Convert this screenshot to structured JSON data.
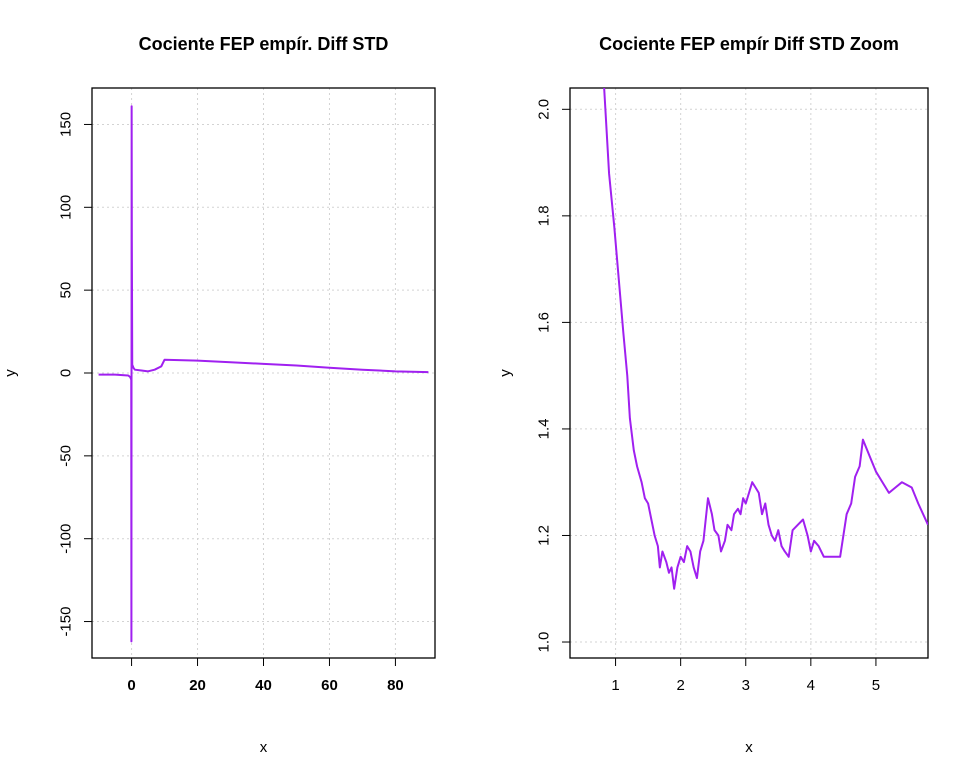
{
  "colors": {
    "line": "#a020f0",
    "grid": "#d3d3d3",
    "frame": "#000000"
  },
  "chart_data": [
    {
      "type": "line",
      "title": "Cociente FEP empír. Diff STD",
      "xlabel": "x",
      "ylabel": "y",
      "xlim": [
        -12,
        92
      ],
      "ylim": [
        -172,
        172
      ],
      "grid": true,
      "x_ticks": [
        0,
        20,
        40,
        60,
        80
      ],
      "y_ticks": [
        -150,
        -100,
        -50,
        0,
        50,
        100,
        150
      ],
      "series": [
        {
          "points": [
            [
              -10,
              -1
            ],
            [
              -5,
              -1
            ],
            [
              -1,
              -1.5
            ],
            [
              -0.4,
              -2.5
            ],
            [
              -0.1,
              -4
            ],
            [
              -0.05,
              -162
            ],
            [
              0.02,
              161
            ],
            [
              0.08,
              80
            ],
            [
              0.2,
              5
            ],
            [
              0.6,
              3
            ],
            [
              1,
              2
            ],
            [
              3,
              1.5
            ],
            [
              5,
              1
            ],
            [
              7,
              2
            ],
            [
              9,
              4
            ],
            [
              10,
              8
            ],
            [
              20,
              7.5
            ],
            [
              30,
              6.5
            ],
            [
              40,
              5.5
            ],
            [
              50,
              4.5
            ],
            [
              60,
              3.2
            ],
            [
              70,
              2
            ],
            [
              80,
              1
            ],
            [
              90,
              0.5
            ]
          ]
        }
      ]
    },
    {
      "type": "line",
      "title": "Cociente FEP empír Diff STD Zoom",
      "xlabel": "x",
      "ylabel": "y",
      "xlim": [
        0.3,
        5.8
      ],
      "ylim": [
        0.97,
        2.04
      ],
      "grid": true,
      "x_ticks": [
        1,
        2,
        3,
        4,
        5
      ],
      "y_ticks": [
        1.0,
        1.2,
        1.4,
        1.6,
        1.8,
        2.0
      ],
      "series": [
        {
          "points": [
            [
              0.82,
              2.05
            ],
            [
              0.9,
              1.88
            ],
            [
              0.98,
              1.78
            ],
            [
              1.05,
              1.68
            ],
            [
              1.12,
              1.58
            ],
            [
              1.18,
              1.5
            ],
            [
              1.22,
              1.42
            ],
            [
              1.28,
              1.36
            ],
            [
              1.33,
              1.33
            ],
            [
              1.4,
              1.3
            ],
            [
              1.45,
              1.27
            ],
            [
              1.5,
              1.26
            ],
            [
              1.55,
              1.23
            ],
            [
              1.6,
              1.2
            ],
            [
              1.65,
              1.18
            ],
            [
              1.68,
              1.14
            ],
            [
              1.72,
              1.17
            ],
            [
              1.78,
              1.15
            ],
            [
              1.82,
              1.13
            ],
            [
              1.86,
              1.14
            ],
            [
              1.9,
              1.1
            ],
            [
              1.95,
              1.14
            ],
            [
              2.0,
              1.16
            ],
            [
              2.05,
              1.15
            ],
            [
              2.1,
              1.18
            ],
            [
              2.15,
              1.17
            ],
            [
              2.2,
              1.14
            ],
            [
              2.25,
              1.12
            ],
            [
              2.3,
              1.17
            ],
            [
              2.35,
              1.19
            ],
            [
              2.42,
              1.27
            ],
            [
              2.48,
              1.24
            ],
            [
              2.52,
              1.21
            ],
            [
              2.58,
              1.2
            ],
            [
              2.62,
              1.17
            ],
            [
              2.68,
              1.19
            ],
            [
              2.72,
              1.22
            ],
            [
              2.78,
              1.21
            ],
            [
              2.82,
              1.24
            ],
            [
              2.88,
              1.25
            ],
            [
              2.92,
              1.24
            ],
            [
              2.96,
              1.27
            ],
            [
              3.0,
              1.26
            ],
            [
              3.05,
              1.28
            ],
            [
              3.1,
              1.3
            ],
            [
              3.15,
              1.29
            ],
            [
              3.2,
              1.28
            ],
            [
              3.25,
              1.24
            ],
            [
              3.3,
              1.26
            ],
            [
              3.35,
              1.22
            ],
            [
              3.4,
              1.2
            ],
            [
              3.45,
              1.19
            ],
            [
              3.5,
              1.21
            ],
            [
              3.55,
              1.18
            ],
            [
              3.6,
              1.17
            ],
            [
              3.66,
              1.16
            ],
            [
              3.72,
              1.21
            ],
            [
              3.8,
              1.22
            ],
            [
              3.88,
              1.23
            ],
            [
              3.95,
              1.2
            ],
            [
              4.0,
              1.17
            ],
            [
              4.05,
              1.19
            ],
            [
              4.12,
              1.18
            ],
            [
              4.2,
              1.16
            ],
            [
              4.3,
              1.16
            ],
            [
              4.45,
              1.16
            ],
            [
              4.55,
              1.24
            ],
            [
              4.62,
              1.26
            ],
            [
              4.68,
              1.31
            ],
            [
              4.75,
              1.33
            ],
            [
              4.8,
              1.38
            ],
            [
              4.9,
              1.35
            ],
            [
              5.0,
              1.32
            ],
            [
              5.1,
              1.3
            ],
            [
              5.2,
              1.28
            ],
            [
              5.3,
              1.29
            ],
            [
              5.4,
              1.3
            ],
            [
              5.55,
              1.29
            ],
            [
              5.65,
              1.26
            ],
            [
              5.8,
              1.22
            ]
          ]
        }
      ]
    }
  ]
}
